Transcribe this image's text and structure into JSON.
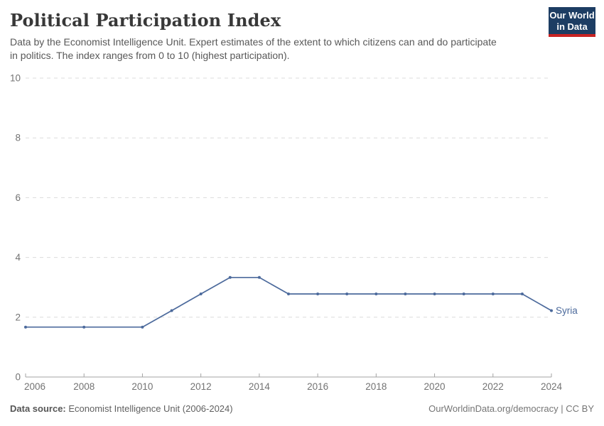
{
  "header": {
    "title": "Political Participation Index",
    "subtitle_lines": [
      "Data by the Economist Intelligence Unit. Expert estimates of the extent to which citizens can and do participate",
      "in politics. The index ranges from 0 to 10 (highest participation)."
    ],
    "logo": {
      "line1": "Our World",
      "line2": "in Data",
      "bg_color": "#1d3d63",
      "accent_color": "#c82323"
    }
  },
  "footer": {
    "source_label": "Data source:",
    "source_value": " Economist Intelligence Unit (2006-2024)",
    "attribution": "OurWorldinData.org/democracy | CC BY"
  },
  "chart_data": {
    "type": "line",
    "title": "Political Participation Index",
    "xlabel": "",
    "ylabel": "",
    "xlim": [
      2006,
      2024
    ],
    "ylim": [
      0,
      10
    ],
    "x_ticks": [
      2006,
      2008,
      2010,
      2012,
      2014,
      2016,
      2018,
      2020,
      2022,
      2024
    ],
    "y_ticks": [
      0,
      2,
      4,
      6,
      8,
      10
    ],
    "grid": "horizontal-dashed",
    "legend": "end-of-line-label",
    "series": [
      {
        "name": "Syria",
        "color": "#4c6a9c",
        "x": [
          2006,
          2008,
          2010,
          2011,
          2012,
          2013,
          2014,
          2015,
          2016,
          2017,
          2018,
          2019,
          2020,
          2021,
          2022,
          2023,
          2024
        ],
        "values": [
          1.67,
          1.67,
          1.67,
          2.22,
          2.78,
          3.33,
          3.33,
          2.78,
          2.78,
          2.78,
          2.78,
          2.78,
          2.78,
          2.78,
          2.78,
          2.78,
          2.22
        ]
      }
    ],
    "axis_style": {
      "grid_color": "#dcdcdc",
      "axis_line_color": "#a3a3a3",
      "tick_text_color": "#737373"
    }
  }
}
